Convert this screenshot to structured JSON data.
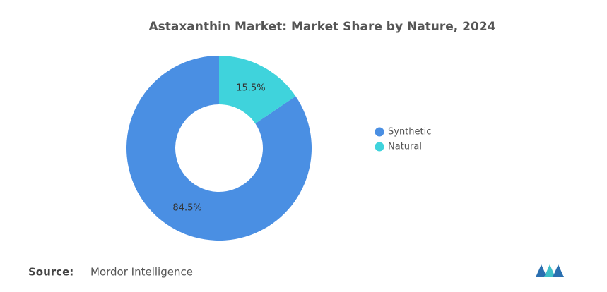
{
  "chart_data": {
    "type": "donut",
    "title": "Astaxanthin Market: Market Share by Nature, 2024",
    "categories": [
      "Synthetic",
      "Natural"
    ],
    "values": [
      84.5,
      15.5
    ],
    "value_labels": [
      "84.5%",
      "15.5%"
    ],
    "colors": [
      "#4a8fe3",
      "#3fd3dc"
    ],
    "legend": "right",
    "source_label": "Source:",
    "source": "Mordor Intelligence"
  }
}
